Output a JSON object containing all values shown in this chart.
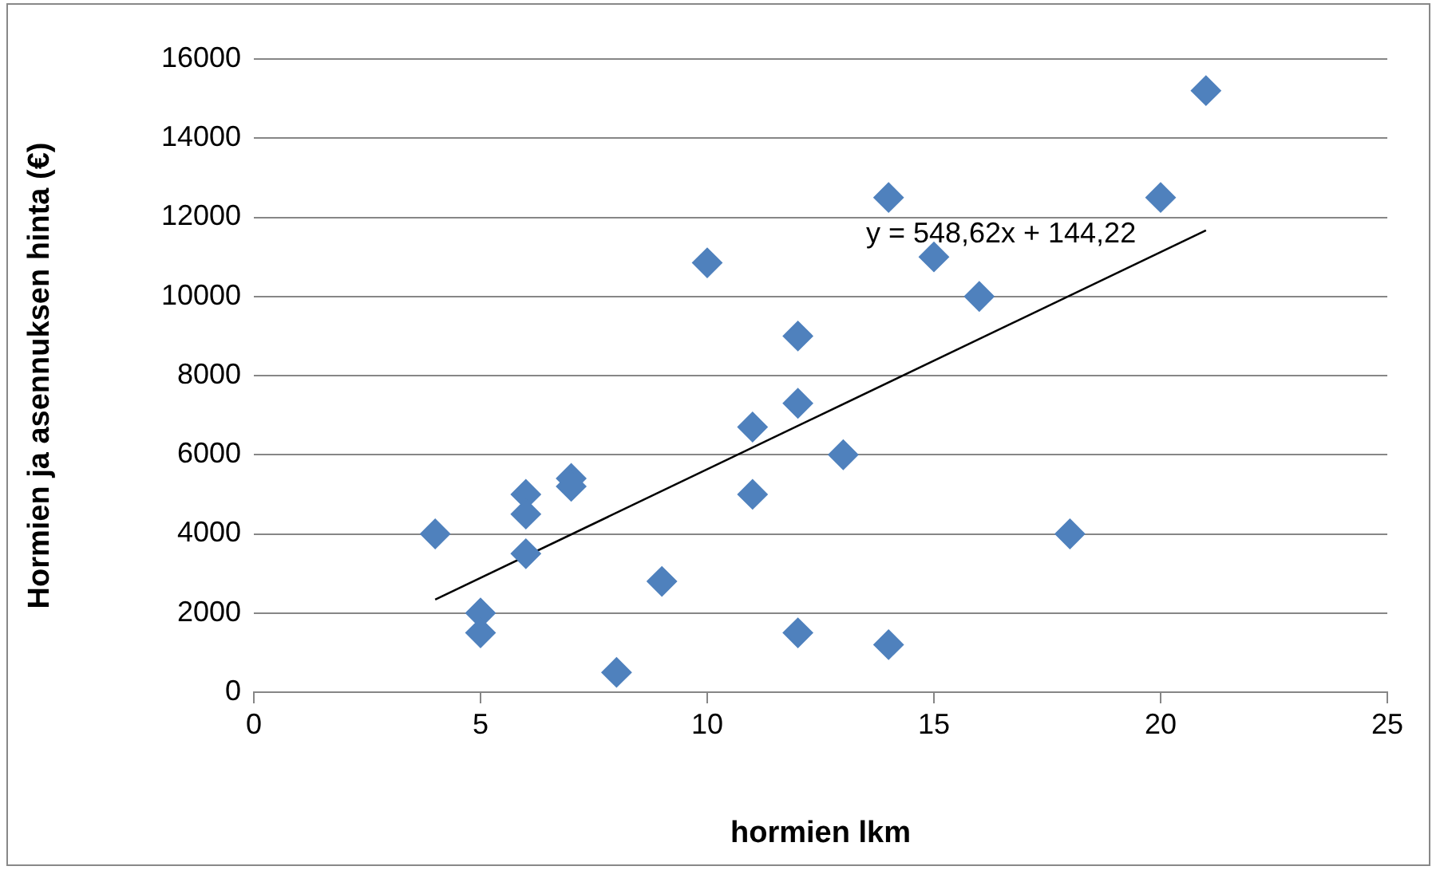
{
  "chart_data": {
    "type": "scatter",
    "xlabel": "hormien lkm",
    "ylabel": "Hormien ja asennuksen hinta (€)",
    "xlim": [
      0,
      25
    ],
    "xticks": [
      0,
      5,
      10,
      15,
      20,
      25
    ],
    "ylim": [
      0,
      16000
    ],
    "yticks": [
      0,
      2000,
      4000,
      6000,
      8000,
      10000,
      12000,
      14000,
      16000
    ],
    "grid": "y",
    "legend": false,
    "series": [
      {
        "color": "#4f81bd",
        "marker": "diamond",
        "x": [
          4,
          5,
          5,
          6,
          6,
          6,
          7,
          7,
          8,
          9,
          10,
          11,
          11,
          12,
          12,
          12,
          13,
          14,
          14,
          15,
          16,
          18,
          20,
          21
        ],
        "values": [
          4000,
          2000,
          1500,
          5000,
          4500,
          3500,
          5400,
          5200,
          500,
          2800,
          10850,
          6700,
          5000,
          9000,
          7300,
          1500,
          6000,
          12500,
          1200,
          11000,
          10000,
          4000,
          12500,
          15200
        ]
      },
      {
        "type": "line",
        "color": "#000000",
        "marker": "none",
        "x": [
          4,
          21
        ],
        "values": [
          2340,
          11670
        ]
      }
    ],
    "annotations": [
      "y = 548,62x + 144,22"
    ]
  }
}
